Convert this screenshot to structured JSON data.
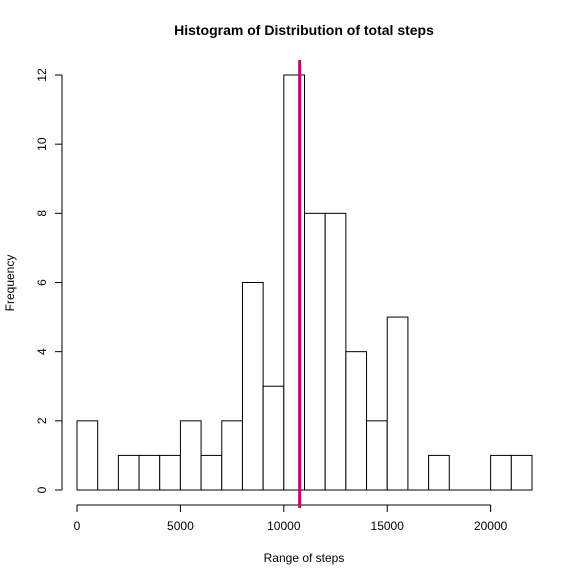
{
  "chart_data": {
    "type": "bar",
    "title": "Histogram of Distribution of total steps",
    "xlabel": "Range of steps",
    "ylabel": "Frequency",
    "bin_width": 1000,
    "bin_starts": [
      0,
      1000,
      2000,
      3000,
      4000,
      5000,
      6000,
      7000,
      8000,
      9000,
      10000,
      11000,
      12000,
      13000,
      14000,
      15000,
      16000,
      17000,
      18000,
      19000,
      20000,
      21000
    ],
    "values": [
      2,
      0,
      1,
      1,
      1,
      2,
      1,
      2,
      6,
      3,
      12,
      8,
      8,
      4,
      2,
      5,
      0,
      1,
      0,
      0,
      1,
      1
    ],
    "xlim": [
      0,
      22000
    ],
    "ylim": [
      0,
      12
    ],
    "x_ticks": [
      "0",
      "5000",
      "10000",
      "15000",
      "20000"
    ],
    "x_tick_values": [
      0,
      5000,
      10000,
      15000,
      20000
    ],
    "y_ticks": [
      "0",
      "2",
      "4",
      "6",
      "8",
      "10",
      "12"
    ],
    "y_tick_values": [
      0,
      2,
      4,
      6,
      8,
      10,
      12
    ],
    "reference_line": {
      "x": 10766,
      "color": "#c4006e"
    },
    "bar_fill": "#ffffff",
    "bar_stroke": "#000000",
    "grid": false
  }
}
